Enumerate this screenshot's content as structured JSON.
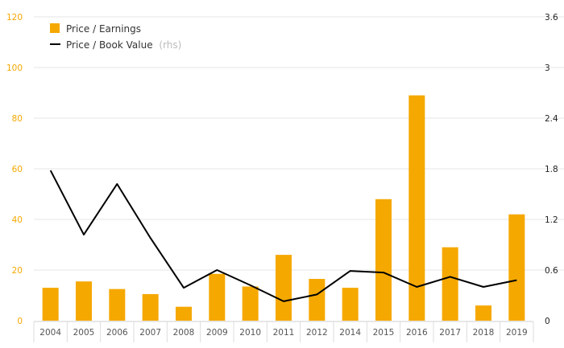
{
  "chart_data": {
    "type": "bar",
    "categories": [
      "2004",
      "2005",
      "2006",
      "2007",
      "2008",
      "2009",
      "2010",
      "2011",
      "2012",
      "2014",
      "2015",
      "2016",
      "2017",
      "2018",
      "2019"
    ],
    "series": [
      {
        "name": "Price / Earnings",
        "type": "bar",
        "axis": "left",
        "color": "#f5a800",
        "values": [
          13,
          15.5,
          12.5,
          10.5,
          5.5,
          18.5,
          13.5,
          26,
          16.5,
          13,
          48,
          89,
          29,
          6,
          42
        ]
      },
      {
        "name": "Price / Book Value",
        "type": "line",
        "axis": "right",
        "color": "#000000",
        "values": [
          1.78,
          1.02,
          1.62,
          0.98,
          0.39,
          0.6,
          0.42,
          0.23,
          0.31,
          0.59,
          0.57,
          0.4,
          0.52,
          0.4,
          0.48
        ]
      }
    ],
    "yleft": {
      "lim": [
        0,
        120
      ],
      "ticks": [
        "0",
        "20",
        "40",
        "60",
        "80",
        "100",
        "120"
      ]
    },
    "yright": {
      "lim": [
        0,
        3.6
      ],
      "ticks": [
        "0",
        "0.6",
        "1.2",
        "1.8",
        "2.4",
        "3",
        "3.6"
      ]
    },
    "grid": true,
    "legend": {
      "position": "top-left",
      "items": [
        {
          "label": "Price / Earnings",
          "note": ""
        },
        {
          "label": "Price / Book Value",
          "note": "(rhs)"
        }
      ]
    }
  }
}
